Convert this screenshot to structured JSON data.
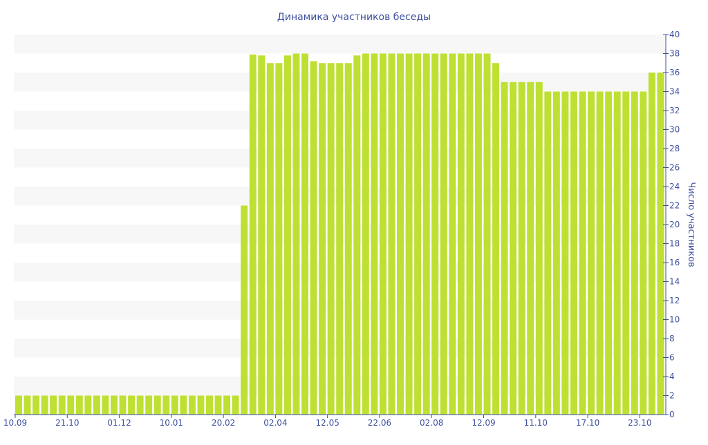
{
  "chart_data": {
    "type": "bar",
    "title": "Динамика участников беседы",
    "xlabel": "",
    "ylabel": "Число участников",
    "ylim": [
      0,
      40
    ],
    "ytick_step": 2,
    "grid": "alternating horizontal bands",
    "x_tick_every": 6,
    "x_tick_labels": [
      "10.09",
      "21.10",
      "01.12",
      "10.01",
      "20.02",
      "02.04",
      "12.05",
      "22.06",
      "02.08",
      "12.09",
      "11.10",
      "17.10",
      "23.10"
    ],
    "values": [
      2,
      2,
      2,
      2,
      2,
      2,
      2,
      2,
      2,
      2,
      2,
      2,
      2,
      2,
      2,
      2,
      2,
      2,
      2,
      2,
      2,
      2,
      2,
      2,
      2,
      2,
      22,
      37.9,
      37.8,
      37,
      37,
      37.8,
      38,
      38,
      37.2,
      37,
      37,
      37,
      37,
      37.8,
      38,
      38,
      38,
      38,
      38,
      38,
      38,
      38,
      38,
      38,
      38,
      38,
      38,
      38,
      38,
      37,
      35,
      35,
      35,
      35,
      35,
      34,
      34,
      34,
      34,
      34,
      34,
      34,
      34,
      34,
      34,
      34,
      34,
      36,
      36
    ],
    "colors": {
      "bar": "#bde032",
      "axis": "#3d4f9f",
      "band": "#f7f7f7"
    }
  }
}
